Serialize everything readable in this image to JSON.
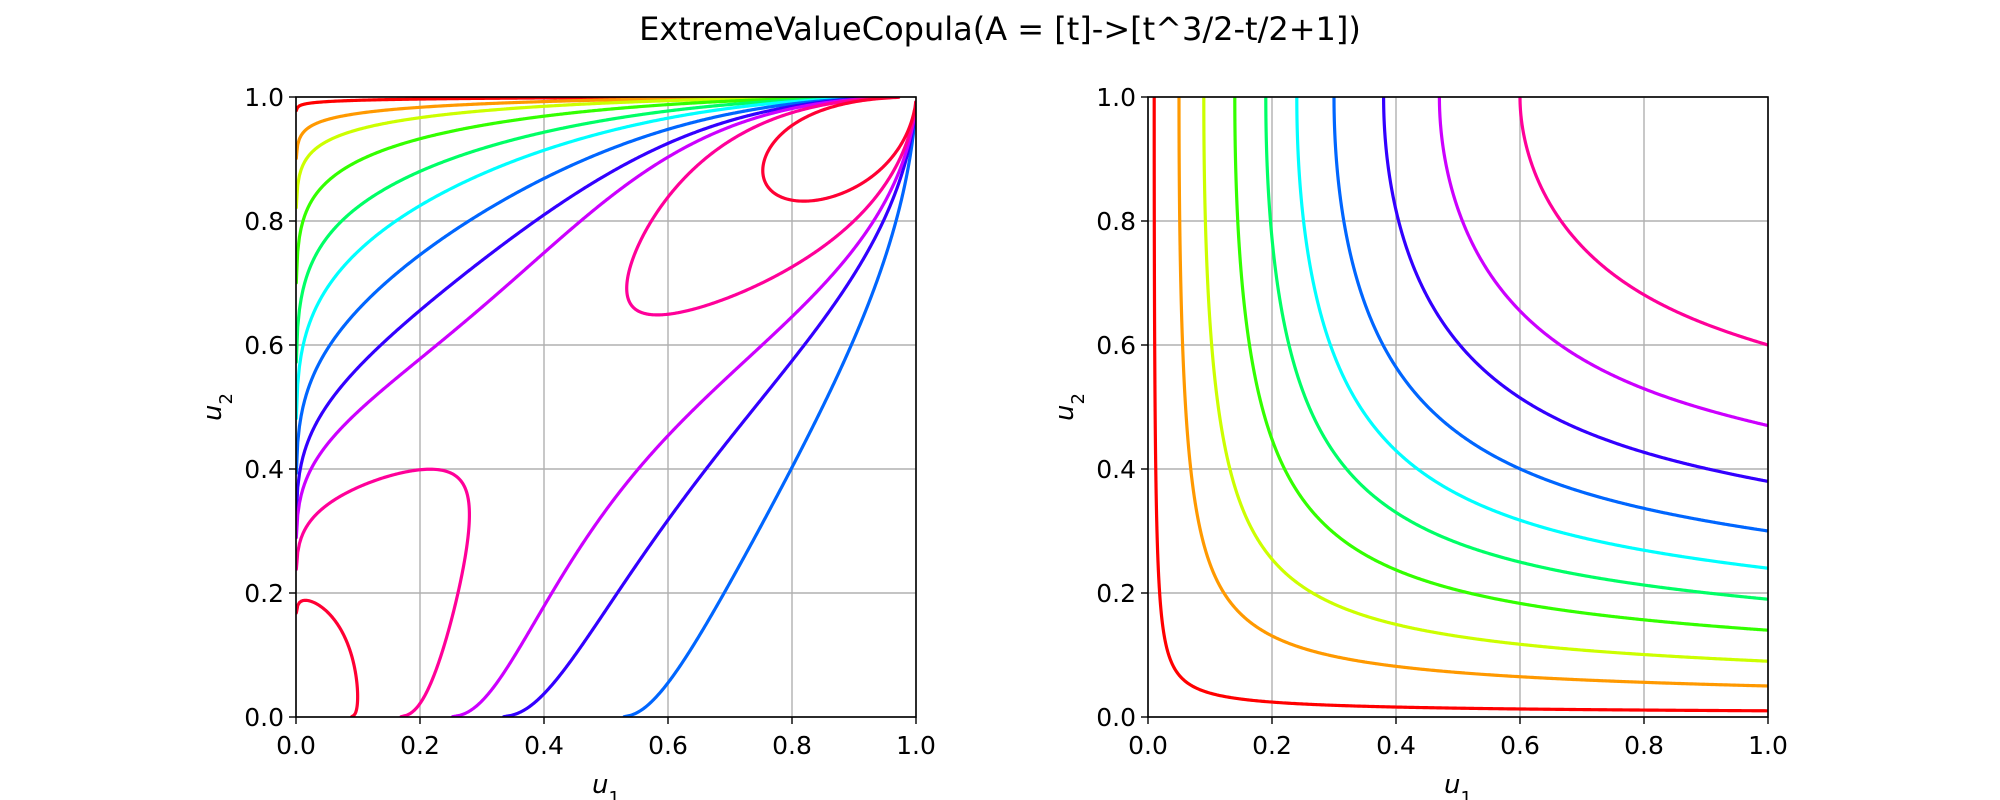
{
  "figure": {
    "title": "ExtremeValueCopula(A = [t]->[t^3/2-t/2+1])"
  },
  "chart_data": [
    {
      "type": "contour",
      "panel": "left",
      "function": "copula density c(u1,u2), A(t) = t^3/2 - t/2 + 1",
      "xlabel_base": "u",
      "xlabel_sub": "1",
      "ylabel_base": "u",
      "ylabel_sub": "2",
      "xlim": [
        0.0,
        1.0
      ],
      "ylim": [
        0.0,
        1.0
      ],
      "xticks": [
        "0.0",
        "0.2",
        "0.4",
        "0.6",
        "0.8",
        "1.0"
      ],
      "yticks": [
        "0.0",
        "0.2",
        "0.4",
        "0.6",
        "0.8",
        "1.0"
      ],
      "grid": true,
      "levels": [
        0.01,
        0.05,
        0.1,
        0.2,
        0.35,
        0.5,
        0.7,
        0.9,
        1.05,
        1.3,
        1.8
      ],
      "colors": [
        "#ff0000",
        "#ff9900",
        "#ccff00",
        "#33ff00",
        "#00ff66",
        "#00ffff",
        "#0066ff",
        "#3300ff",
        "#cc00ff",
        "#ff0099",
        "#ff0033"
      ]
    },
    {
      "type": "contour",
      "panel": "right",
      "function": "copula distribution C(u1,u2) = exp(-(log u1 + log u2) * A(t)), t = log u1 / (log u1 + log u2)",
      "xlabel_base": "u",
      "xlabel_sub": "1",
      "ylabel_base": "u",
      "ylabel_sub": "2",
      "xlim": [
        0.0,
        1.0
      ],
      "ylim": [
        0.0,
        1.0
      ],
      "xticks": [
        "0.0",
        "0.2",
        "0.4",
        "0.6",
        "0.8",
        "1.0"
      ],
      "yticks": [
        "0.0",
        "0.2",
        "0.4",
        "0.6",
        "0.8",
        "1.0"
      ],
      "grid": true,
      "levels": [
        0.01,
        0.05,
        0.09,
        0.14,
        0.19,
        0.24,
        0.3,
        0.38,
        0.47,
        0.6
      ],
      "colors": [
        "#ff0000",
        "#ff9900",
        "#ccff00",
        "#33ff00",
        "#00ff66",
        "#00ffff",
        "#0066ff",
        "#3300ff",
        "#cc00ff",
        "#ff0099"
      ]
    }
  ]
}
